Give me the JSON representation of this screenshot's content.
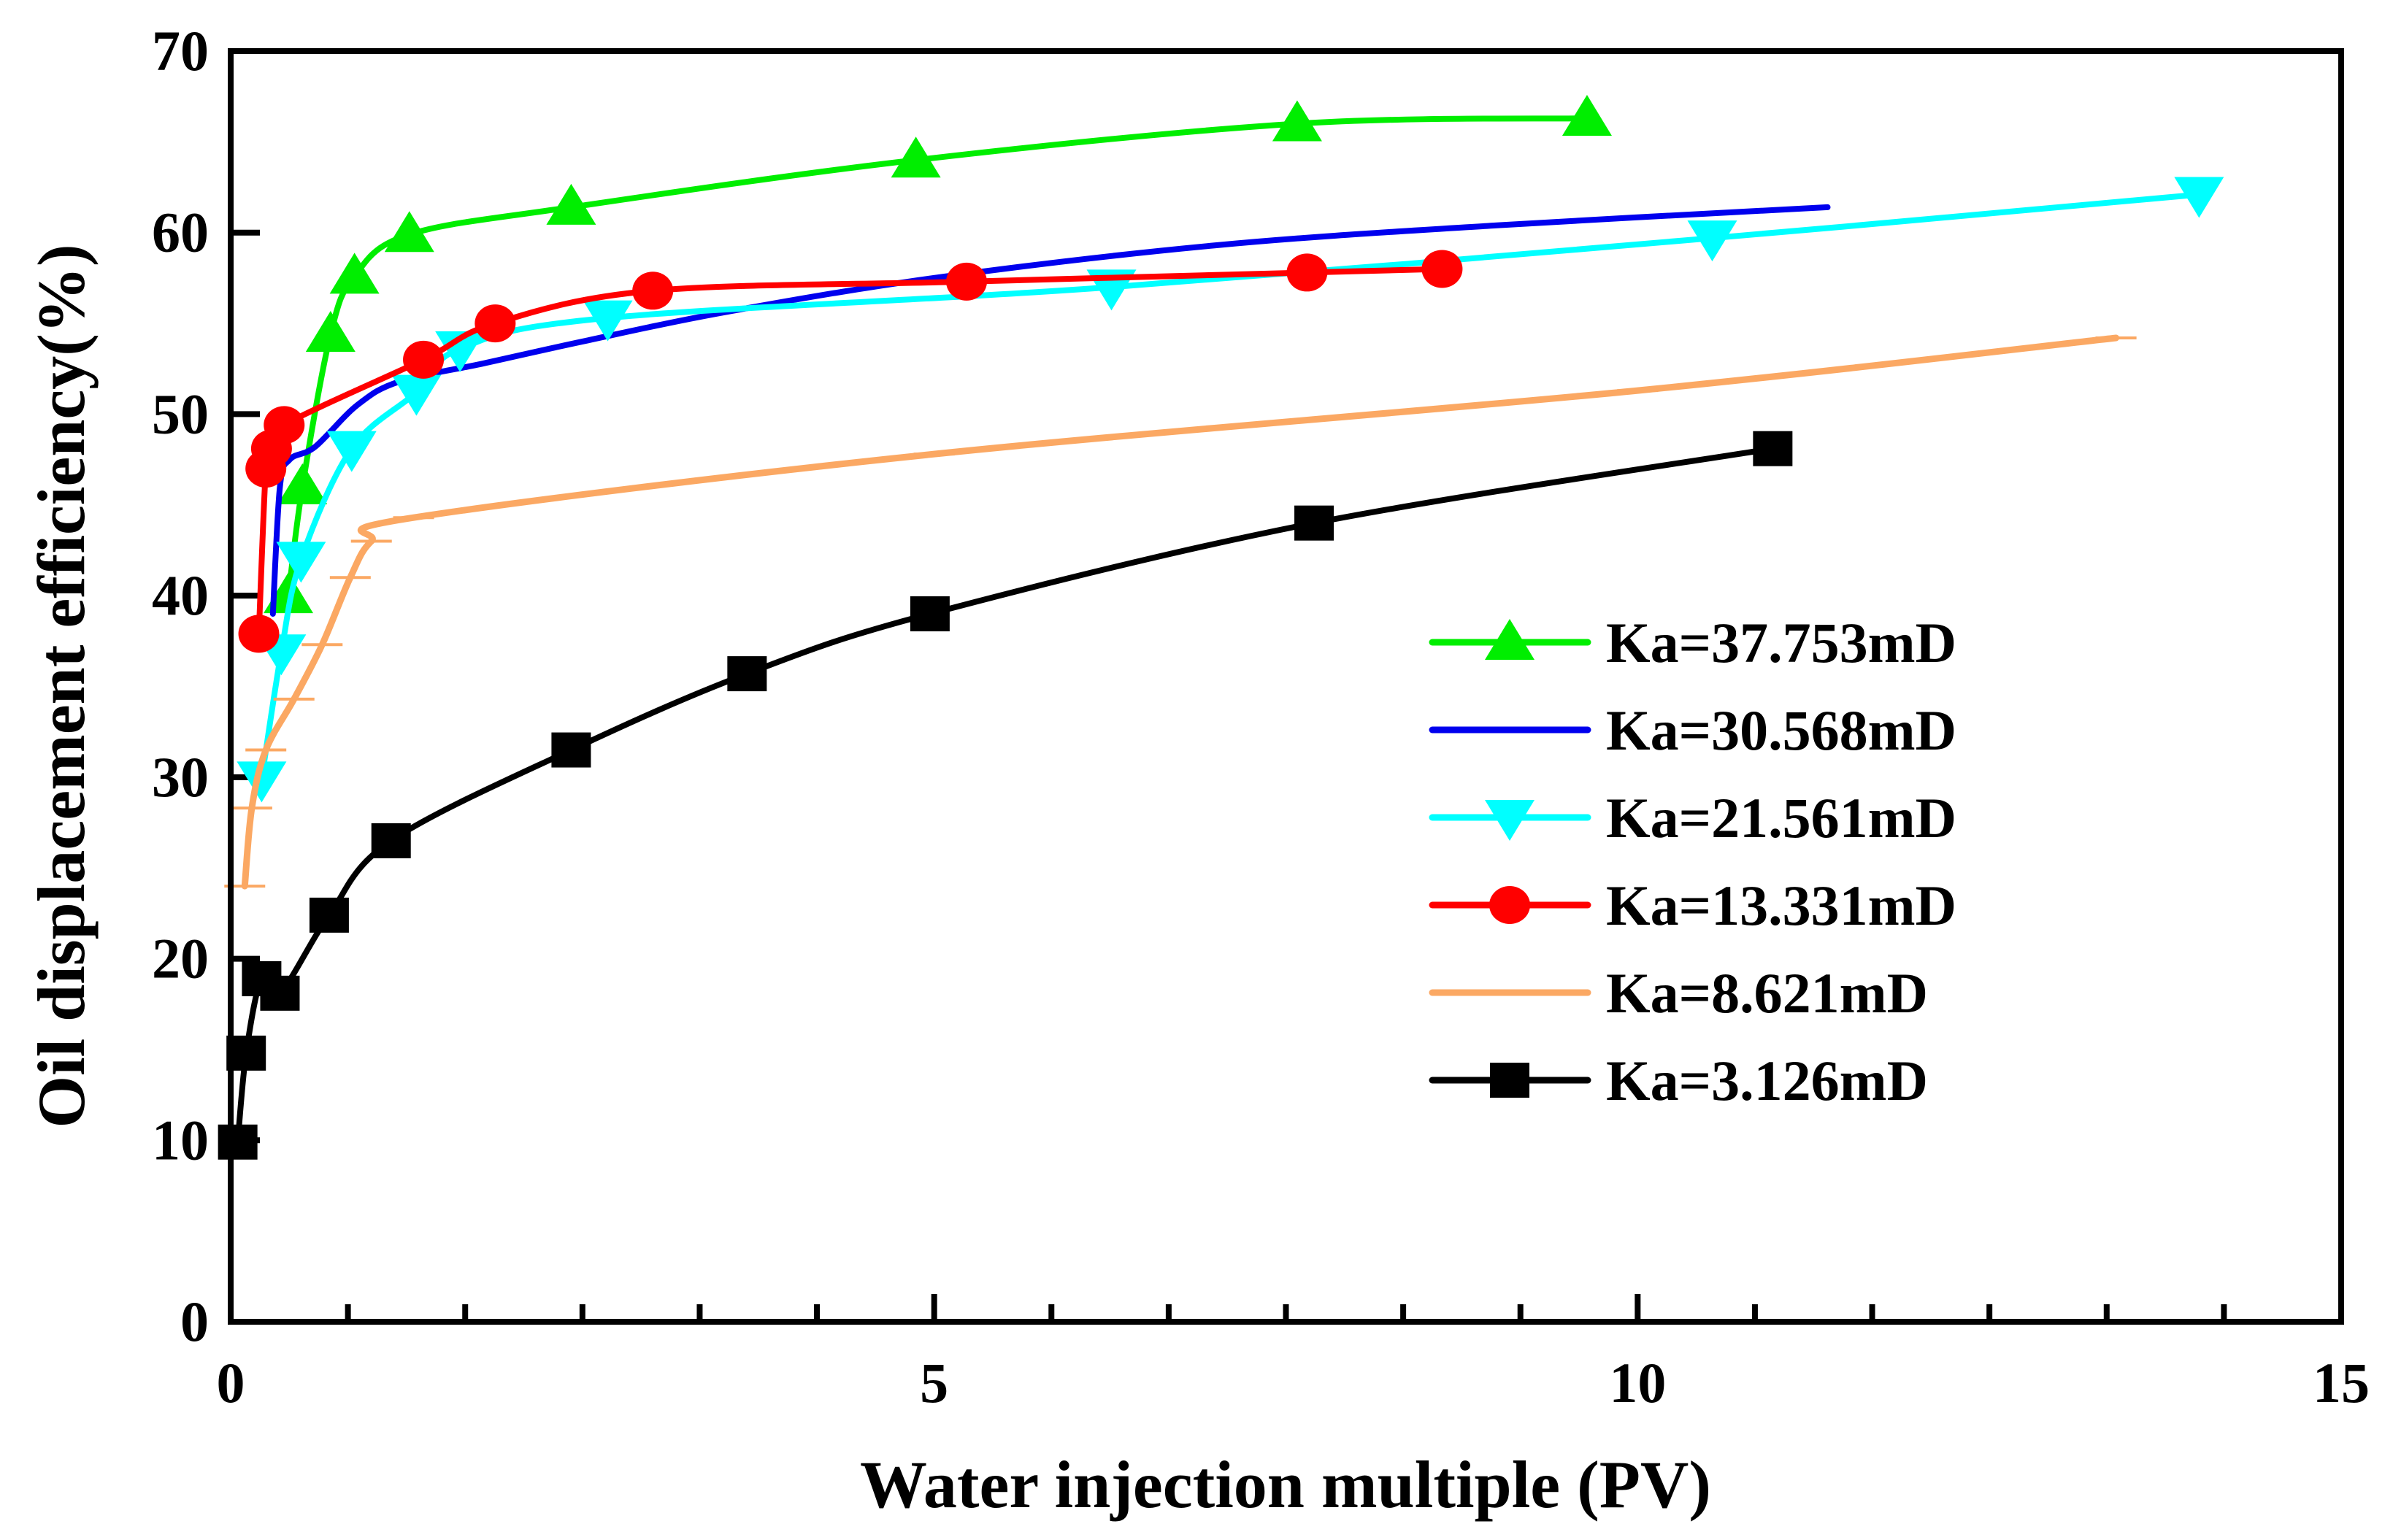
{
  "chart_data": {
    "type": "line",
    "title": "",
    "xlabel": "Water injection multiple (PV)",
    "ylabel": "Oil displacement efficiency(%)",
    "xlim": [
      0,
      15
    ],
    "ylim": [
      0,
      70
    ],
    "xticks": [
      "0",
      "5",
      "10",
      "15"
    ],
    "yticks": [
      "0",
      "10",
      "20",
      "30",
      "40",
      "50",
      "60",
      "70"
    ],
    "grid": false,
    "legend_position": "center-right",
    "series": [
      {
        "name": "Ka=37.753mD",
        "color": "#00ee00",
        "marker": "triangle-up",
        "x": [
          0.41,
          0.51,
          0.71,
          0.88,
          1.27,
          2.42,
          4.87,
          7.58,
          9.64
        ],
        "y": [
          40.0,
          46.0,
          54.4,
          57.6,
          59.9,
          61.4,
          64.0,
          66.0,
          66.3
        ]
      },
      {
        "name": "Ka=30.568mD",
        "color": "#0000ee",
        "marker": "none",
        "x": [
          0.3,
          0.35,
          0.42,
          0.6,
          0.9,
          1.2,
          1.8,
          2.5,
          3.5,
          5.0,
          7.0,
          9.0,
          11.35
        ],
        "y": [
          39.0,
          46.0,
          47.5,
          48.2,
          50.5,
          51.8,
          52.8,
          54.0,
          55.6,
          57.5,
          59.3,
          60.4,
          61.4
        ]
      },
      {
        "name": "Ka=21.561mD",
        "color": "#00ffff",
        "marker": "triangle-down",
        "x": [
          0.22,
          0.36,
          0.5,
          0.86,
          1.32,
          1.63,
          2.68,
          6.26,
          10.53,
          13.99
        ],
        "y": [
          29.9,
          36.9,
          42.0,
          48.1,
          51.2,
          53.6,
          55.3,
          57.0,
          59.7,
          62.1
        ]
      },
      {
        "name": "Ka=13.331mD",
        "color": "#ff0000",
        "marker": "circle",
        "x": [
          0.2,
          0.25,
          0.29,
          0.38,
          1.37,
          1.88,
          3.0,
          5.23,
          7.65,
          8.61
        ],
        "y": [
          37.9,
          47.0,
          48.1,
          49.4,
          53.0,
          55.0,
          56.8,
          57.3,
          57.8,
          58.0
        ]
      },
      {
        "name": "Ka=8.621mD",
        "color": "#fba863",
        "marker": "dash",
        "x": [
          0.1,
          0.15,
          0.25,
          0.45,
          0.65,
          0.85,
          1.0,
          1.3,
          5.0,
          10.0,
          13.4
        ],
        "y": [
          24.0,
          28.3,
          31.5,
          34.3,
          37.3,
          41.0,
          43.0,
          44.3,
          47.8,
          51.3,
          54.2
        ]
      },
      {
        "name": "Ka=3.126mD",
        "color": "#000000",
        "marker": "square",
        "x": [
          0.05,
          0.11,
          0.22,
          0.35,
          0.7,
          1.14,
          2.42,
          3.67,
          4.97,
          7.7,
          10.96
        ],
        "y": [
          9.9,
          14.8,
          18.9,
          18.1,
          22.4,
          26.5,
          31.5,
          35.7,
          39.0,
          44.0,
          48.1
        ]
      }
    ]
  }
}
